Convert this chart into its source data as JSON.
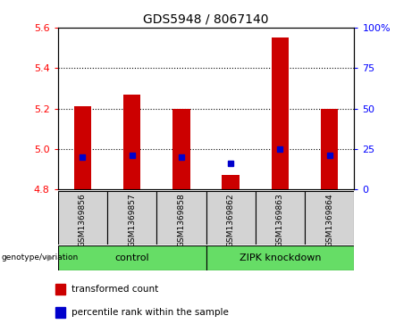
{
  "title": "GDS5948 / 8067140",
  "samples": [
    "GSM1369856",
    "GSM1369857",
    "GSM1369858",
    "GSM1369862",
    "GSM1369863",
    "GSM1369864"
  ],
  "red_values": [
    5.21,
    5.27,
    5.2,
    4.87,
    5.55,
    5.2
  ],
  "blue_values_left": [
    4.96,
    4.97,
    4.96,
    4.93,
    5.0,
    4.97
  ],
  "ylim_left": [
    4.8,
    5.6
  ],
  "ylim_right": [
    0,
    100
  ],
  "yticks_left": [
    4.8,
    5.0,
    5.2,
    5.4,
    5.6
  ],
  "yticks_right": [
    0,
    25,
    50,
    75,
    100
  ],
  "bar_color": "#cc0000",
  "dot_color": "#0000cc",
  "bg_color": "#d3d3d3",
  "plot_bg": "#ffffff",
  "green_color": "#66dd66",
  "legend_red_label": "transformed count",
  "legend_blue_label": "percentile rank within the sample",
  "genotype_label": "genotype/variation",
  "control_label": "control",
  "zipk_label": "ZIPK knockdown",
  "control_indices": [
    0,
    1,
    2
  ],
  "zipk_indices": [
    3,
    4,
    5
  ]
}
